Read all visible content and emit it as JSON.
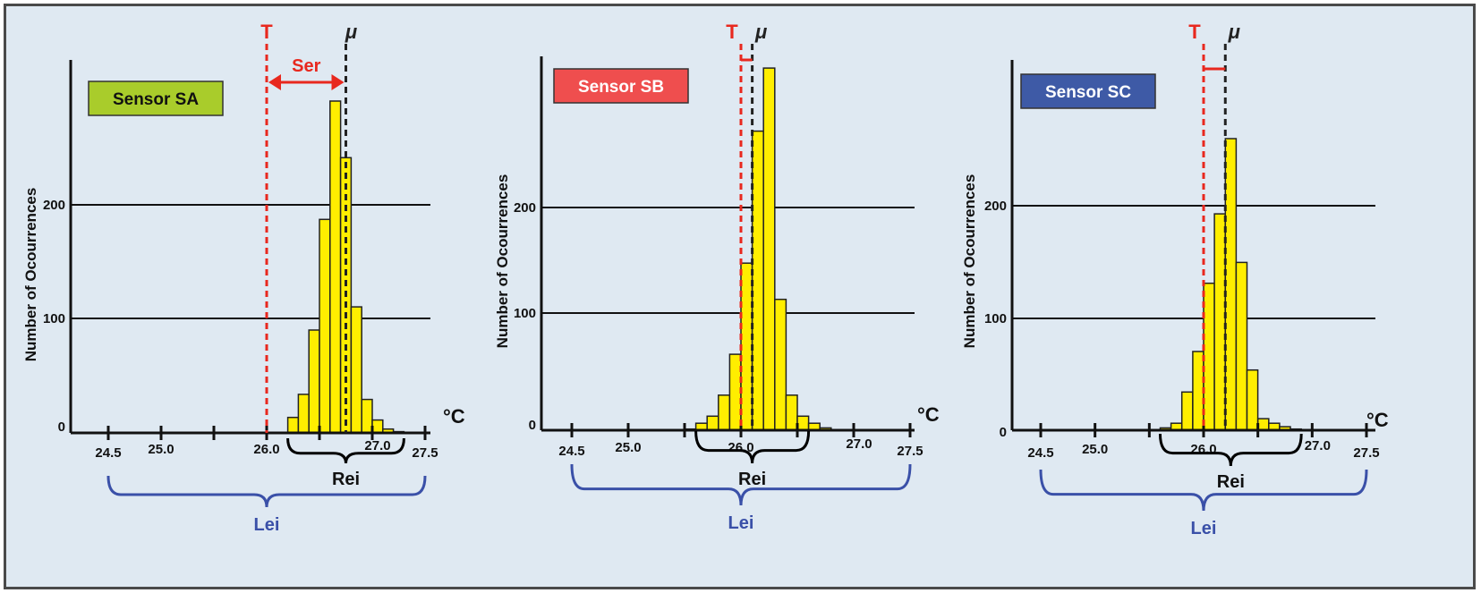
{
  "figure": {
    "colors": {
      "background": "#dfe9f2",
      "bar_fill": "#ffee00",
      "bar_stroke": "#222222",
      "threshold": "#e8281e",
      "mean": "#222222",
      "lei_brace": "#3a50a8",
      "rei_brace": "#000000"
    }
  },
  "chart_data": [
    {
      "type": "bar",
      "title": "Sensor SA",
      "badge_color": "#a9cc2b",
      "badge_text_color": "#111111",
      "ylabel": "Number of Ocourrences",
      "unit_label": "°C",
      "x_ticks": [
        "24.5",
        "25.0",
        "26.0",
        "27.0",
        "27.5"
      ],
      "y_ticks": [
        "0",
        "100",
        "200"
      ],
      "gridlines_y": [
        100,
        200
      ],
      "xlim": [
        24.2,
        27.65
      ],
      "ylim": [
        0,
        290
      ],
      "bin_width": 0.1,
      "bins_start": [
        26.2,
        26.3,
        26.4,
        26.5,
        26.6,
        26.7,
        26.8,
        26.9,
        27.0,
        27.1,
        27.2
      ],
      "values": [
        12,
        30,
        80,
        166,
        258,
        214,
        98,
        26,
        10,
        3,
        1
      ],
      "threshold": {
        "label": "T",
        "x": 26.0
      },
      "mean": {
        "label": "μ",
        "x": 26.75
      },
      "ser_label": "Ser",
      "rei": {
        "label": "Rei",
        "range": [
          26.2,
          27.3
        ]
      },
      "lei": {
        "label": "Lei",
        "range": [
          24.5,
          27.5
        ]
      }
    },
    {
      "type": "bar",
      "title": "Sensor SB",
      "badge_color": "#ef4e4e",
      "badge_text_color": "#ffffff",
      "ylabel": "Number of Ocourrences",
      "unit_label": "°C",
      "x_ticks": [
        "24.5",
        "25.0",
        "26.0",
        "27.0",
        "27.5"
      ],
      "y_ticks": [
        "0",
        "100",
        "200"
      ],
      "gridlines_y": [
        100,
        200
      ],
      "xlim": [
        24.25,
        27.6
      ],
      "ylim": [
        0,
        320
      ],
      "bin_width": 0.1,
      "bins_start": [
        25.5,
        25.6,
        25.7,
        25.8,
        25.9,
        26.0,
        26.1,
        26.2,
        26.3,
        26.4,
        26.5,
        26.6,
        26.7
      ],
      "values": [
        1,
        6,
        12,
        30,
        65,
        143,
        256,
        310,
        112,
        30,
        12,
        6,
        2
      ],
      "threshold": {
        "label": "T",
        "x": 26.0
      },
      "mean": {
        "label": "μ",
        "x": 26.1
      },
      "rei": {
        "label": "Rei",
        "range": [
          25.6,
          26.6
        ]
      },
      "lei": {
        "label": "Lei",
        "range": [
          24.5,
          27.5
        ]
      }
    },
    {
      "type": "bar",
      "title": "Sensor SC",
      "badge_color": "#3e5aa6",
      "badge_text_color": "#ffffff",
      "ylabel": "Number of Ocourrences",
      "unit_label": "°C",
      "x_ticks": [
        "24.5",
        "25.0",
        "26.0",
        "27.0",
        "27.5"
      ],
      "y_ticks": [
        "0",
        "100",
        "200"
      ],
      "gridlines_y": [
        100,
        200
      ],
      "xlim": [
        24.25,
        27.65
      ],
      "ylim": [
        0,
        320
      ],
      "bin_width": 0.1,
      "bins_start": [
        25.6,
        25.7,
        25.8,
        25.9,
        26.0,
        26.1,
        26.2,
        26.3,
        26.4,
        26.5,
        26.6,
        26.7,
        26.8
      ],
      "values": [
        2,
        6,
        33,
        68,
        127,
        187,
        252,
        145,
        52,
        10,
        6,
        3,
        1
      ],
      "threshold": {
        "label": "T",
        "x": 26.0
      },
      "mean": {
        "label": "μ",
        "x": 26.2
      },
      "rei": {
        "label": "Rei",
        "range": [
          25.6,
          26.9
        ]
      },
      "lei": {
        "label": "Lei",
        "range": [
          24.5,
          27.5
        ]
      }
    }
  ]
}
